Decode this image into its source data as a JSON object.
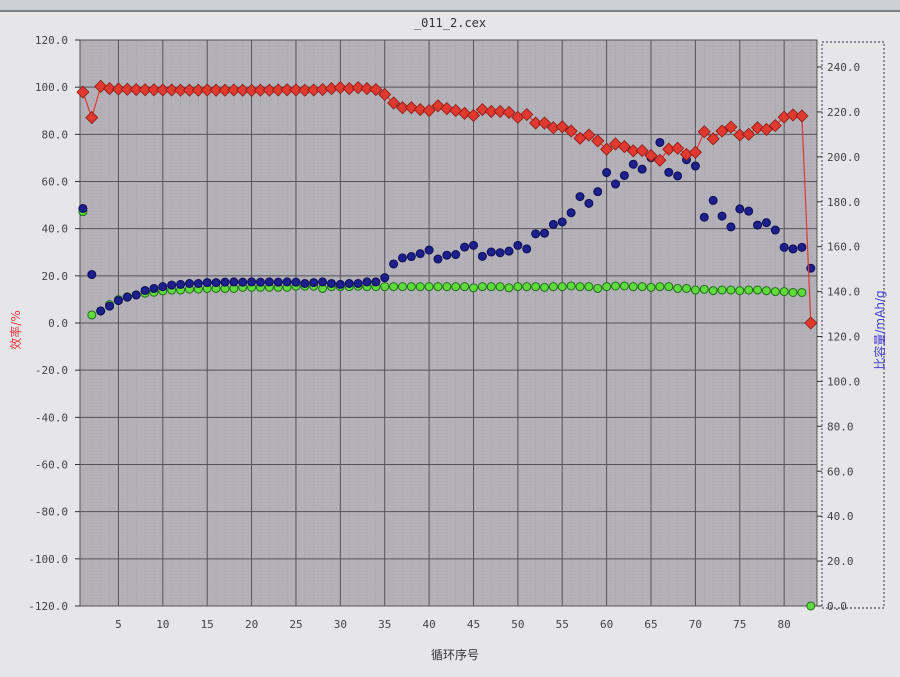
{
  "window": {
    "title": "_011_2.cex"
  },
  "chart_data": {
    "type": "scatter",
    "title": "_011_2.cex",
    "xlabel": "循环序号",
    "ylabel_left": "效率/%",
    "ylabel_right": "比容量/mAh/g",
    "xlim": [
      0.67,
      83.7
    ],
    "ylim_left": [
      -120,
      120
    ],
    "ylim_right": [
      0,
      240
    ],
    "x_ticks": [
      "5",
      "10",
      "15",
      "20",
      "25",
      "30",
      "35",
      "40",
      "45",
      "50",
      "55",
      "60",
      "65",
      "70",
      "75",
      "80"
    ],
    "y_left_ticks": [
      "120.0",
      "100.0",
      "80.0",
      "60.0",
      "40.0",
      "20.0",
      "0.0",
      "-20.0",
      "-40.0",
      "-60.0",
      "-80.0",
      "-100.0",
      "-120.0"
    ],
    "y_right_ticks": [
      "240.0",
      "220.0",
      "200.0",
      "180.0",
      "160.0",
      "140.0",
      "120.0",
      "100.0",
      "80.0",
      "60.0",
      "40.0",
      "20.0",
      "0.0"
    ],
    "grid": true,
    "colors": {
      "left_axis_label": "#e23b3b",
      "right_axis_label": "#4a3fd0",
      "plot_bg": "#b3b1b7"
    },
    "series": [
      {
        "axis": "left",
        "marker": "diamond",
        "color": "#e0392f",
        "line": true,
        "values": [
          97.9,
          87.1,
          100.3,
          99.4,
          99.2,
          99.1,
          99.0,
          98.9,
          98.9,
          98.8,
          98.8,
          98.7,
          98.7,
          98.7,
          98.8,
          98.7,
          98.7,
          98.8,
          98.7,
          98.6,
          98.7,
          98.7,
          98.8,
          98.9,
          98.8,
          98.7,
          98.8,
          99.0,
          99.4,
          99.8,
          99.4,
          99.8,
          99.4,
          99.0,
          96.9,
          93.3,
          91.3,
          91.3,
          90.5,
          90.1,
          92.1,
          90.9,
          90.1,
          88.9,
          88.0,
          90.5,
          89.7,
          89.7,
          89.3,
          87.2,
          88.4,
          84.8,
          84.8,
          82.8,
          83.2,
          81.4,
          78.3,
          79.7,
          77.2,
          73.7,
          75.9,
          74.8,
          73.0,
          73.1,
          71.0,
          69.0,
          73.7,
          74.1,
          71.5,
          72.4,
          81.1,
          78.1,
          81.4,
          83.1,
          79.7,
          80.0,
          82.8,
          82.1,
          83.7,
          87.3,
          88.2,
          87.8,
          0
        ]
      },
      {
        "axis": "right",
        "marker": "circle",
        "color": "#1c1f8c",
        "line": false,
        "values": [
          177,
          147.6,
          131.4,
          133.5,
          136,
          137.5,
          138.5,
          140.5,
          141.4,
          142.2,
          142.9,
          143.2,
          143.6,
          143.6,
          144,
          144,
          144.2,
          144.3,
          144.2,
          144.3,
          144.2,
          144.3,
          144.2,
          144.3,
          144.2,
          143.6,
          144.0,
          144.3,
          143.6,
          143.2,
          143.6,
          143.6,
          144.3,
          144.3,
          146.2,
          152.3,
          155.0,
          155.6,
          156.9,
          158.5,
          154.5,
          156.2,
          156.5,
          159.8,
          160.6,
          155.7,
          157.6,
          157.3,
          158.0,
          160.6,
          159.0,
          165.7,
          166.0,
          169.9,
          171.0,
          175.1,
          182.3,
          179.3,
          184.5,
          193.0,
          187.9,
          191.7,
          196.7,
          194.5,
          199.6,
          206.4,
          193.1,
          191.5,
          198.7,
          195.9,
          173.1,
          180.6,
          173.6,
          168.8,
          176.8,
          175.8,
          169.6,
          170.7,
          167.4,
          159.7,
          159.0,
          159.7,
          150.4
        ]
      },
      {
        "axis": "right",
        "marker": "circle",
        "color": "#5fdc3c",
        "line": false,
        "values": [
          175.6,
          129.6,
          131.3,
          134.2,
          136.4,
          137.7,
          138.5,
          139.3,
          139.7,
          140.3,
          140.7,
          140.7,
          141.1,
          141.1,
          141.4,
          141.4,
          141.4,
          141.4,
          141.9,
          141.9,
          141.9,
          141.9,
          141.9,
          141.9,
          142.4,
          142.4,
          142.4,
          141.4,
          142.2,
          142.2,
          142.2,
          142.4,
          142.2,
          142.2,
          142.2,
          142.2,
          142.2,
          142.2,
          142.2,
          142.2,
          142.2,
          142.2,
          142.2,
          142.2,
          141.7,
          142.2,
          142.2,
          142.2,
          141.7,
          142.2,
          142.2,
          142.2,
          141.9,
          142.2,
          142.2,
          142.5,
          142.2,
          142.2,
          141.4,
          142.2,
          142.5,
          142.5,
          142.2,
          142.2,
          141.9,
          142.2,
          142.2,
          141.4,
          141.4,
          140.7,
          141.0,
          140.4,
          140.7,
          140.7,
          140.4,
          140.7,
          140.7,
          140.4,
          140.0,
          140.0,
          139.6,
          139.6,
          0
        ]
      }
    ]
  }
}
